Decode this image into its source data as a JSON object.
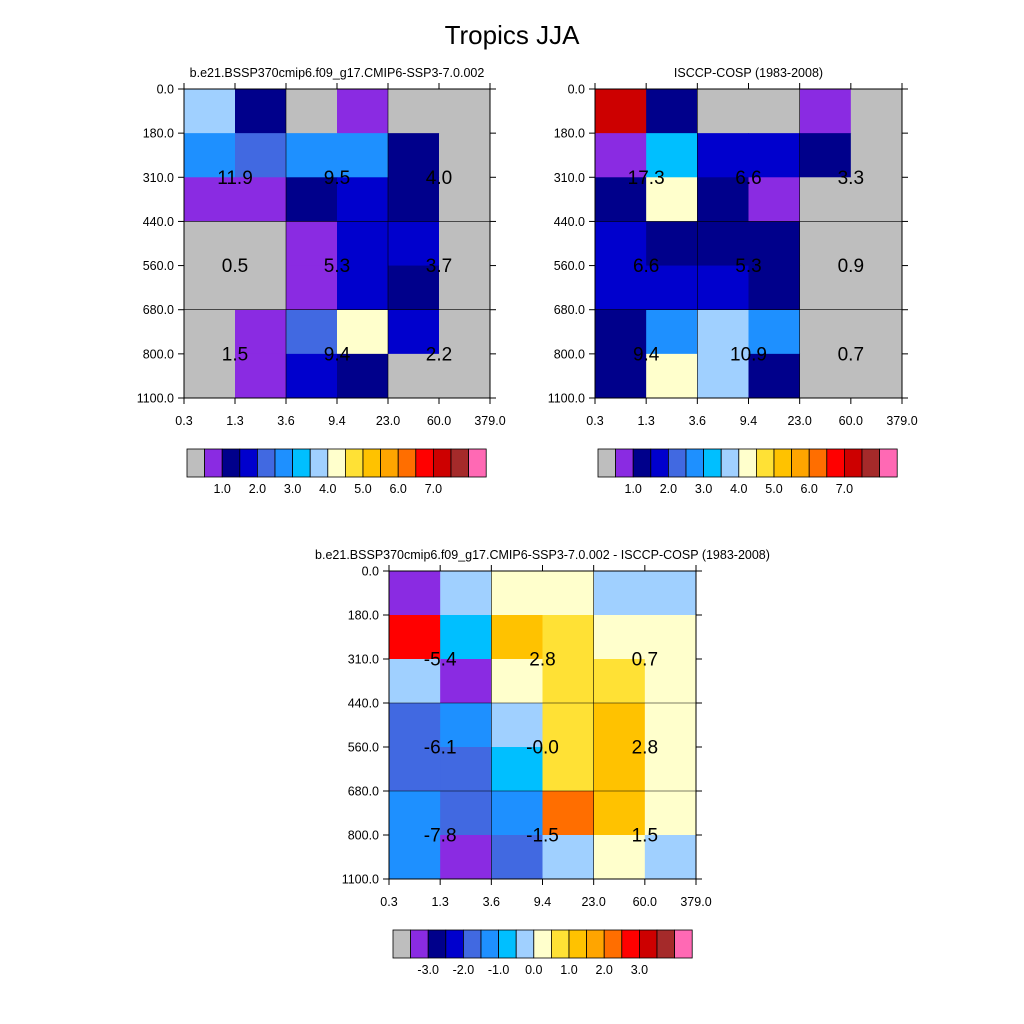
{
  "title": "Tropics JJA",
  "palette": {
    "gray": "#BEBEBE",
    "purple": "#8A2BE2",
    "navy": "#00008B",
    "blue": "#0000CD",
    "royal": "#4169E1",
    "dodger": "#1E90FF",
    "sky": "#00BFFF",
    "lightsky": "#A0D0FF",
    "cream": "#FFFFCC",
    "yellow": "#FFE135",
    "gold": "#FFC200",
    "orange": "#FFA500",
    "darkorange": "#FF6E00",
    "red": "#FF0000",
    "crimson": "#CD0000",
    "brown": "#A52A2A",
    "pink": "#FF69B4"
  },
  "chart_data": [
    {
      "type": "heatmap",
      "title": "b.e21.BSSP370cmip6.f09_g17.CMIP6-SSP3-7.0.002",
      "x_ticks": [
        "0.3",
        "1.3",
        "3.6",
        "9.4",
        "23.0",
        "60.0",
        "379.0"
      ],
      "y_ticks": [
        "0.0",
        "180.0",
        "310.0",
        "440.0",
        "560.0",
        "680.0",
        "800.0",
        "1100.0"
      ],
      "cells": [
        [
          "lightsky",
          "navy",
          "gray",
          "purple",
          "gray",
          "gray"
        ],
        [
          "dodger",
          "royal",
          "dodger",
          "dodger",
          "navy",
          "gray"
        ],
        [
          "purple",
          "purple",
          "navy",
          "blue",
          "navy",
          "gray"
        ],
        [
          "gray",
          "gray",
          "purple",
          "blue",
          "blue",
          "gray"
        ],
        [
          "gray",
          "gray",
          "purple",
          "blue",
          "navy",
          "gray"
        ],
        [
          "gray",
          "purple",
          "royal",
          "cream",
          "blue",
          "gray"
        ],
        [
          "gray",
          "purple",
          "blue",
          "navy",
          "gray",
          "gray"
        ]
      ],
      "labels": [
        {
          "row": 0,
          "col": 0,
          "text": "11.9"
        },
        {
          "row": 0,
          "col": 1,
          "text": "9.5"
        },
        {
          "row": 0,
          "col": 2,
          "text": "4.0"
        },
        {
          "row": 1,
          "col": 0,
          "text": "0.5"
        },
        {
          "row": 1,
          "col": 1,
          "text": "5.3"
        },
        {
          "row": 1,
          "col": 2,
          "text": "3.7"
        },
        {
          "row": 2,
          "col": 0,
          "text": "1.5"
        },
        {
          "row": 2,
          "col": 1,
          "text": "9.4"
        },
        {
          "row": 2,
          "col": 2,
          "text": "2.2"
        }
      ],
      "legend": {
        "colors": [
          "gray",
          "purple",
          "navy",
          "blue",
          "royal",
          "dodger",
          "sky",
          "lightsky",
          "cream",
          "yellow",
          "gold",
          "orange",
          "darkorange",
          "red",
          "crimson",
          "brown",
          "pink"
        ],
        "tick_labels": [
          "1.0",
          "2.0",
          "3.0",
          "4.0",
          "5.0",
          "6.0",
          "7.0"
        ],
        "tick_after_box": [
          2,
          4,
          6,
          8,
          10,
          12,
          14
        ]
      }
    },
    {
      "type": "heatmap",
      "title": "ISCCP-COSP (1983-2008)",
      "x_ticks": [
        "0.3",
        "1.3",
        "3.6",
        "9.4",
        "23.0",
        "60.0",
        "379.0"
      ],
      "y_ticks": [
        "0.0",
        "180.0",
        "310.0",
        "440.0",
        "560.0",
        "680.0",
        "800.0",
        "1100.0"
      ],
      "cells": [
        [
          "crimson",
          "navy",
          "gray",
          "gray",
          "purple",
          "gray"
        ],
        [
          "purple",
          "sky",
          "blue",
          "blue",
          "navy",
          "gray"
        ],
        [
          "navy",
          "cream",
          "navy",
          "purple",
          "gray",
          "gray"
        ],
        [
          "blue",
          "navy",
          "navy",
          "navy",
          "gray",
          "gray"
        ],
        [
          "blue",
          "blue",
          "blue",
          "navy",
          "gray",
          "gray"
        ],
        [
          "navy",
          "dodger",
          "lightsky",
          "dodger",
          "gray",
          "gray"
        ],
        [
          "navy",
          "cream",
          "lightsky",
          "navy",
          "gray",
          "gray"
        ]
      ],
      "labels": [
        {
          "row": 0,
          "col": 0,
          "text": "17.3"
        },
        {
          "row": 0,
          "col": 1,
          "text": "6.6"
        },
        {
          "row": 0,
          "col": 2,
          "text": "3.3"
        },
        {
          "row": 1,
          "col": 0,
          "text": "6.6"
        },
        {
          "row": 1,
          "col": 1,
          "text": "5.3"
        },
        {
          "row": 1,
          "col": 2,
          "text": "0.9"
        },
        {
          "row": 2,
          "col": 0,
          "text": "9.4"
        },
        {
          "row": 2,
          "col": 1,
          "text": "10.9"
        },
        {
          "row": 2,
          "col": 2,
          "text": "0.7"
        }
      ],
      "legend": {
        "colors": [
          "gray",
          "purple",
          "navy",
          "blue",
          "royal",
          "dodger",
          "sky",
          "lightsky",
          "cream",
          "yellow",
          "gold",
          "orange",
          "darkorange",
          "red",
          "crimson",
          "brown",
          "pink"
        ],
        "tick_labels": [
          "1.0",
          "2.0",
          "3.0",
          "4.0",
          "5.0",
          "6.0",
          "7.0"
        ],
        "tick_after_box": [
          2,
          4,
          6,
          8,
          10,
          12,
          14
        ]
      }
    },
    {
      "type": "heatmap",
      "title": "b.e21.BSSP370cmip6.f09_g17.CMIP6-SSP3-7.0.002 - ISCCP-COSP (1983-2008)",
      "x_ticks": [
        "0.3",
        "1.3",
        "3.6",
        "9.4",
        "23.0",
        "60.0",
        "379.0"
      ],
      "y_ticks": [
        "0.0",
        "180.0",
        "310.0",
        "440.0",
        "560.0",
        "680.0",
        "800.0",
        "1100.0"
      ],
      "cells": [
        [
          "purple",
          "lightsky",
          "cream",
          "cream",
          "lightsky",
          "lightsky"
        ],
        [
          "red",
          "sky",
          "gold",
          "yellow",
          "cream",
          "cream"
        ],
        [
          "lightsky",
          "purple",
          "cream",
          "yellow",
          "yellow",
          "cream"
        ],
        [
          "royal",
          "dodger",
          "lightsky",
          "yellow",
          "gold",
          "cream"
        ],
        [
          "royal",
          "royal",
          "sky",
          "yellow",
          "gold",
          "cream"
        ],
        [
          "dodger",
          "royal",
          "dodger",
          "darkorange",
          "gold",
          "cream"
        ],
        [
          "dodger",
          "purple",
          "royal",
          "lightsky",
          "cream",
          "lightsky"
        ]
      ],
      "labels": [
        {
          "row": 0,
          "col": 0,
          "text": "-5.4"
        },
        {
          "row": 0,
          "col": 1,
          "text": "2.8"
        },
        {
          "row": 0,
          "col": 2,
          "text": "0.7"
        },
        {
          "row": 1,
          "col": 0,
          "text": "-6.1"
        },
        {
          "row": 1,
          "col": 1,
          "text": "-0.0"
        },
        {
          "row": 1,
          "col": 2,
          "text": "2.8"
        },
        {
          "row": 2,
          "col": 0,
          "text": "-7.8"
        },
        {
          "row": 2,
          "col": 1,
          "text": "-1.5"
        },
        {
          "row": 2,
          "col": 2,
          "text": "1.5"
        }
      ],
      "legend": {
        "colors": [
          "gray",
          "purple",
          "navy",
          "blue",
          "royal",
          "dodger",
          "sky",
          "lightsky",
          "cream",
          "yellow",
          "gold",
          "orange",
          "darkorange",
          "red",
          "crimson",
          "brown",
          "pink"
        ],
        "tick_labels": [
          "-3.0",
          "-2.0",
          "-1.0",
          "0.0",
          "1.0",
          "2.0",
          "3.0"
        ],
        "tick_after_box": [
          2,
          4,
          6,
          8,
          10,
          12,
          14
        ]
      }
    }
  ]
}
